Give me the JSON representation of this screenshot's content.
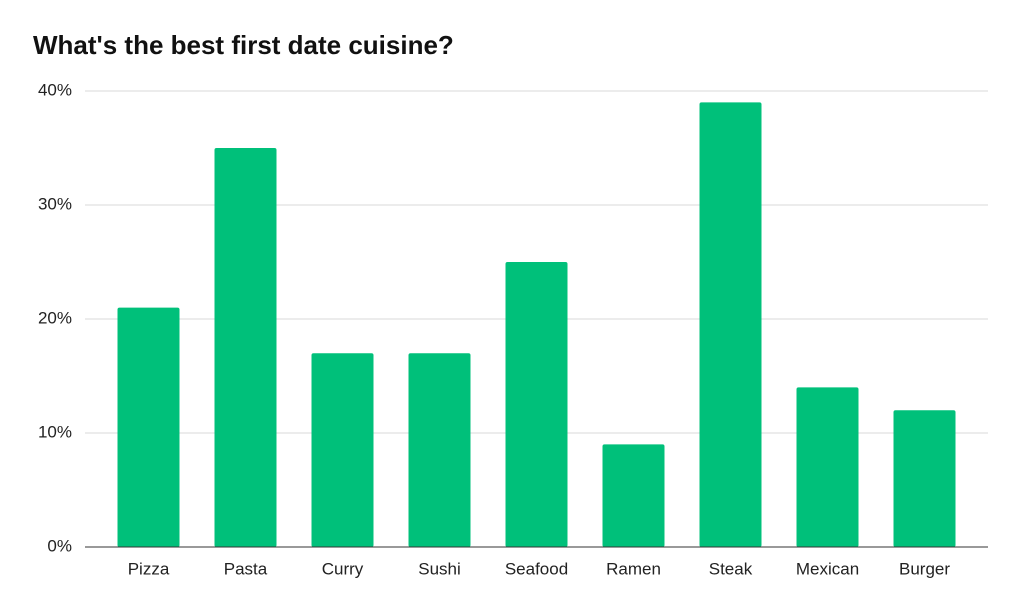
{
  "chart_data": {
    "type": "bar",
    "title": "What's the best first date cuisine?",
    "categories": [
      "Pizza",
      "Pasta",
      "Curry",
      "Sushi",
      "Seafood",
      "Ramen",
      "Steak",
      "Mexican",
      "Burger"
    ],
    "values": [
      21,
      35,
      17,
      17,
      25,
      9,
      39,
      14,
      12
    ],
    "color": "#00c07a",
    "ylim": [
      0,
      40
    ],
    "yticks": [
      {
        "value": 0,
        "label": "0%"
      },
      {
        "value": 10,
        "label": "10%"
      },
      {
        "value": 20,
        "label": "20%"
      },
      {
        "value": 30,
        "label": "30%"
      },
      {
        "value": 40,
        "label": "40%"
      }
    ],
    "grid": true
  }
}
